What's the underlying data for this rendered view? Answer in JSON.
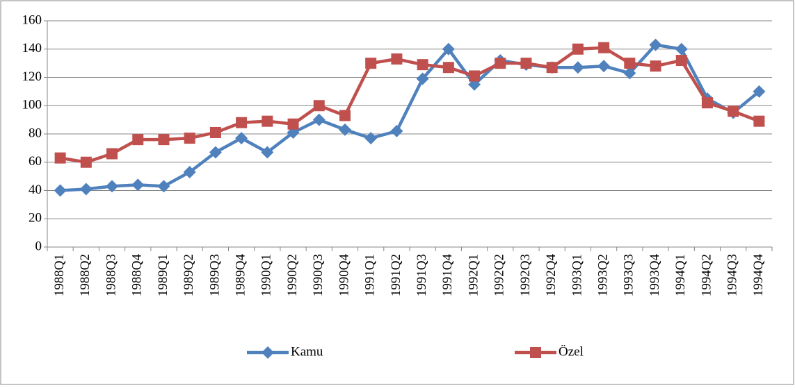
{
  "chart_data": {
    "type": "line",
    "categories": [
      "1988Q1",
      "1988Q2",
      "1988Q3",
      "1988Q4",
      "1989Q1",
      "1989Q2",
      "1989Q3",
      "1989Q4",
      "1990Q1",
      "1990Q2",
      "1990Q3",
      "1990Q4",
      "1991Q1",
      "1991Q2",
      "1991Q3",
      "1991Q4",
      "1992Q1",
      "1992Q2",
      "1992Q3",
      "1992Q4",
      "1993Q1",
      "1993Q2",
      "1993Q3",
      "1993Q4",
      "1994Q1",
      "1994Q2",
      "1994Q3",
      "1994Q4"
    ],
    "series": [
      {
        "name": "Kamu",
        "color": "#4f81bd",
        "marker": "diamond",
        "values": [
          40,
          41,
          43,
          44,
          43,
          53,
          67,
          77,
          67,
          81,
          90,
          83,
          77,
          82,
          119,
          140,
          115,
          132,
          129,
          127,
          127,
          128,
          123,
          143,
          140,
          105,
          95,
          110
        ]
      },
      {
        "name": "Özel",
        "color": "#c0504d",
        "marker": "square",
        "values": [
          63,
          60,
          66,
          76,
          76,
          77,
          81,
          88,
          89,
          87,
          100,
          93,
          130,
          133,
          129,
          127,
          121,
          130,
          130,
          127,
          140,
          141,
          130,
          128,
          132,
          102,
          96,
          89
        ]
      }
    ],
    "ylim": [
      0,
      160
    ],
    "yticks": [
      0,
      20,
      40,
      60,
      80,
      100,
      120,
      140,
      160
    ],
    "grid": true,
    "legend": "bottom"
  }
}
